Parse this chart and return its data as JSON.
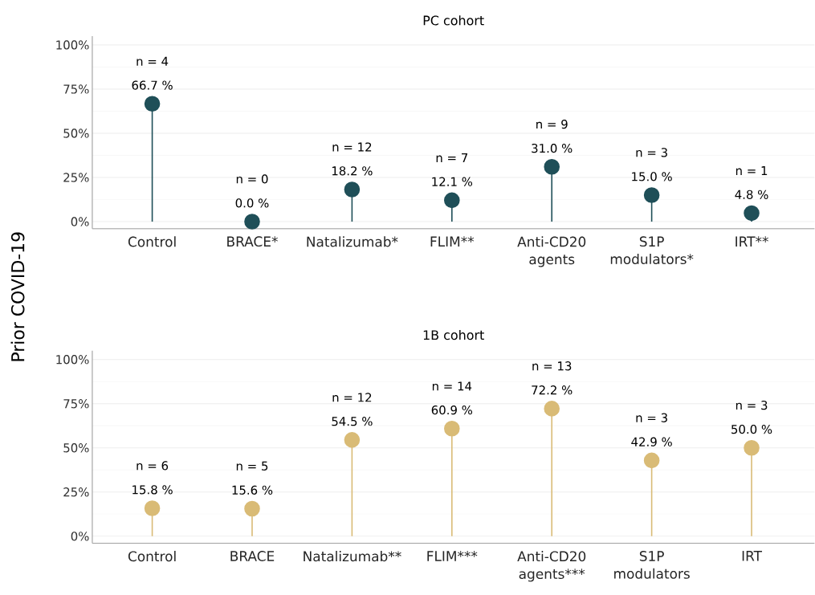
{
  "chart_data": [
    {
      "type": "lollipop",
      "title": "PC cohort",
      "ylabel": "Prior COVID-19",
      "categories": [
        "Control",
        "BRACE*",
        "Natalizumab*",
        "FLIM**",
        "Anti-CD20 agents",
        "S1P modulators*",
        "IRT**"
      ],
      "values": [
        66.7,
        0.0,
        18.2,
        12.1,
        31.0,
        15.0,
        4.8
      ],
      "value_labels": [
        "66.7 %",
        "0.0 %",
        "18.2 %",
        "12.1 %",
        "31.0 %",
        "15.0 %",
        "4.8 %"
      ],
      "annotations": [
        "n = 4",
        "n = 0",
        "n = 12",
        "n = 7",
        "n = 9",
        "n = 3",
        "n = 1"
      ],
      "color": "#1f4f58",
      "marker": "circle",
      "grid": "y",
      "ylim": [
        -4,
        105
      ],
      "yticks": [
        {
          "value": 0,
          "label": "0%"
        },
        {
          "value": 25,
          "label": "25%"
        },
        {
          "value": 50,
          "label": "50%"
        },
        {
          "value": 75,
          "label": "75%"
        },
        {
          "value": 100,
          "label": "100%"
        }
      ]
    },
    {
      "type": "lollipop",
      "title": "1B cohort",
      "categories": [
        "Control",
        "BRACE",
        "Natalizumab**",
        "FLIM***",
        "Anti-CD20 agents***",
        "S1P modulators",
        "IRT"
      ],
      "values": [
        15.8,
        15.6,
        54.5,
        60.9,
        72.2,
        42.9,
        50.0
      ],
      "value_labels": [
        "15.8 %",
        "15.6 %",
        "54.5 %",
        "60.9 %",
        "72.2 %",
        "42.9 %",
        "50.0 %"
      ],
      "annotations": [
        "n = 6",
        "n = 5",
        "n = 12",
        "n = 14",
        "n = 13",
        "n = 3",
        "n = 3"
      ],
      "color": "#d9bb76",
      "marker": "circle",
      "grid": "y",
      "ylim": [
        -4,
        105
      ],
      "yticks": [
        {
          "value": 0,
          "label": "0%"
        },
        {
          "value": 25,
          "label": "25%"
        },
        {
          "value": 50,
          "label": "50%"
        },
        {
          "value": 75,
          "label": "75%"
        },
        {
          "value": 100,
          "label": "100%"
        }
      ]
    }
  ]
}
